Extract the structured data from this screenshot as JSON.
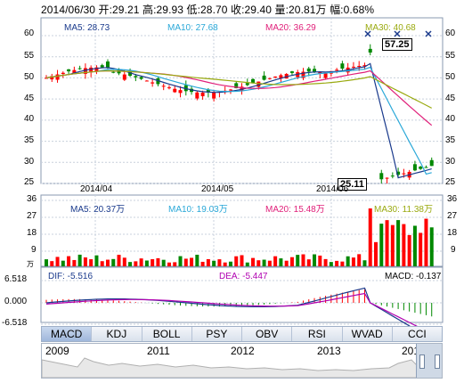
{
  "header": {
    "text": "2014/06/30 开:29.21  高:29.93  低:28.70  收:29.40  量:20.81万  幅:0.68%"
  },
  "price_panel": {
    "ma5": "MA5: 28.73",
    "ma10": "MA10: 27.68",
    "ma20": "MA20: 36.29",
    "ma30": "MA30: 40.68",
    "y_ticks": [
      "60",
      "55",
      "50",
      "45",
      "40",
      "35",
      "30",
      "25"
    ],
    "high_label": "57.25",
    "low_label": "25.11",
    "x_ticks": [
      "2014/04",
      "2014/05",
      "2014/06"
    ]
  },
  "volume_panel": {
    "ma5": "MA5: 20.37万",
    "ma10": "MA10: 19.03万",
    "ma20": "MA20: 15.48万",
    "ma30": "MA30: 11.38万",
    "y_ticks": [
      "36",
      "27",
      "18",
      "9",
      "万"
    ]
  },
  "macd_panel": {
    "dif": "DIF: -5.516",
    "dea": "DEA: -5.447",
    "macd": "MACD: -0.137",
    "y_ticks": [
      "6.518",
      "0.000",
      "-6.518"
    ]
  },
  "tabs": [
    "MACD",
    "KDJ",
    "BOLL",
    "PSY",
    "OBV",
    "RSI",
    "WVAD",
    "CCI"
  ],
  "active_tab": "MACD",
  "navigator": {
    "years": [
      "2009",
      "2011",
      "2012",
      "2013",
      "201"
    ]
  },
  "colors": {
    "up": "#ff0000",
    "down": "#008800",
    "ma5": "#1a3a8c",
    "ma10": "#2aa8d8",
    "ma20": "#e0207a",
    "ma30": "#9aaa10",
    "grid": "#c8d0dc"
  }
}
